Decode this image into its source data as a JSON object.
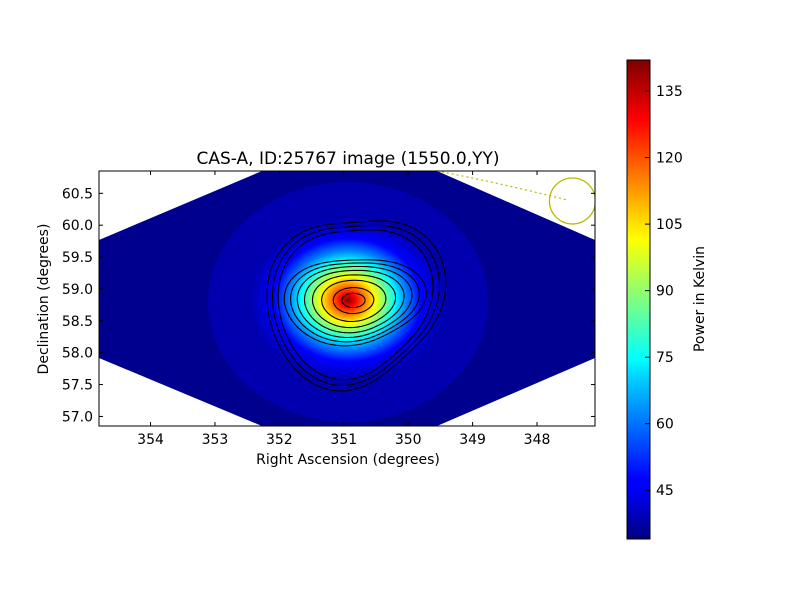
{
  "chart_data": {
    "type": "heatmap",
    "title": "CAS-A, ID:25767 image (1550.0,YY)",
    "xlabel": "Right Ascension (degrees)",
    "ylabel": "Declination (degrees)",
    "xlim": [
      354.8,
      347.1
    ],
    "ylim": [
      56.85,
      60.85
    ],
    "x_ticks": [
      354,
      353,
      352,
      351,
      350,
      349,
      348
    ],
    "y_ticks": [
      57.0,
      57.5,
      58.0,
      58.5,
      59.0,
      59.5,
      60.0,
      60.5
    ],
    "x_tick_labels": [
      "354",
      "353",
      "352",
      "351",
      "350",
      "349",
      "348"
    ],
    "y_tick_labels": [
      "57.0",
      "57.5",
      "58.0",
      "58.5",
      "59.0",
      "59.5",
      "60.0",
      "60.5"
    ],
    "colorbar": {
      "label": "Power in Kelvin",
      "range": [
        34,
        142
      ],
      "ticks": [
        45,
        60,
        75,
        90,
        105,
        120,
        135
      ],
      "tick_labels": [
        "45",
        "60",
        "75",
        "90",
        "105",
        "120",
        "135"
      ],
      "colormap": "jet"
    },
    "source": {
      "ra": 350.85,
      "dec": 58.82,
      "peak": 142,
      "background": 34
    },
    "contour_levels": [
      45,
      55,
      65,
      75,
      85,
      95,
      105,
      115,
      125,
      135,
      140
    ],
    "beam_marker": {
      "ra": 347.45,
      "dec": 60.38,
      "color": "#b8b800"
    },
    "colors": {
      "background_fill": "#00007f",
      "contour": "#000000",
      "marker": "#b8b800"
    }
  }
}
